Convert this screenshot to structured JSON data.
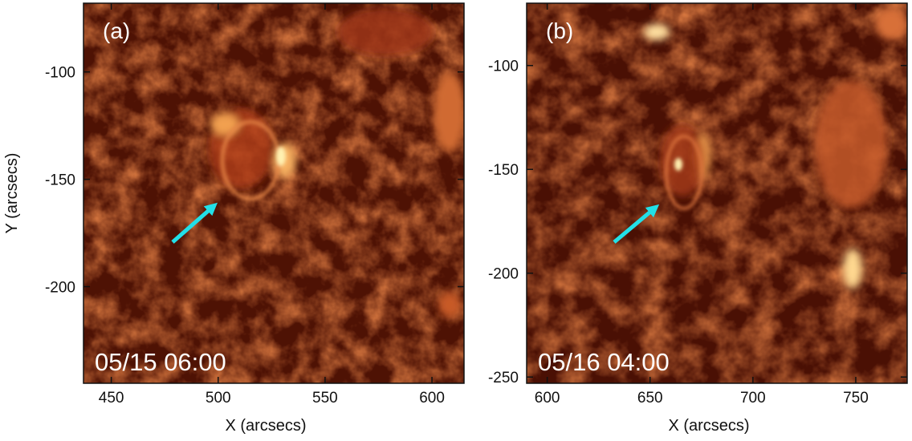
{
  "chart_data": [
    {
      "type": "image",
      "panel_label": "(a)",
      "annotation": "05/15 06:00",
      "xlabel": "X (arcsecs)",
      "ylabel": "Y (arcsecs)",
      "xlim": [
        437,
        615
      ],
      "ylim": [
        -245,
        -68
      ],
      "xticks": [
        450,
        500,
        550,
        600
      ],
      "yticks": [
        -100,
        -150,
        -200
      ]
    },
    {
      "type": "image",
      "panel_label": "(b)",
      "annotation": "05/16 04:00",
      "xlabel": "X (arcsecs)",
      "xlim": [
        590,
        775
      ],
      "ylim": [
        -253,
        -70
      ],
      "xticks": [
        600,
        650,
        700,
        750
      ],
      "yticks": [
        -100,
        -150,
        -200,
        -250
      ]
    }
  ]
}
